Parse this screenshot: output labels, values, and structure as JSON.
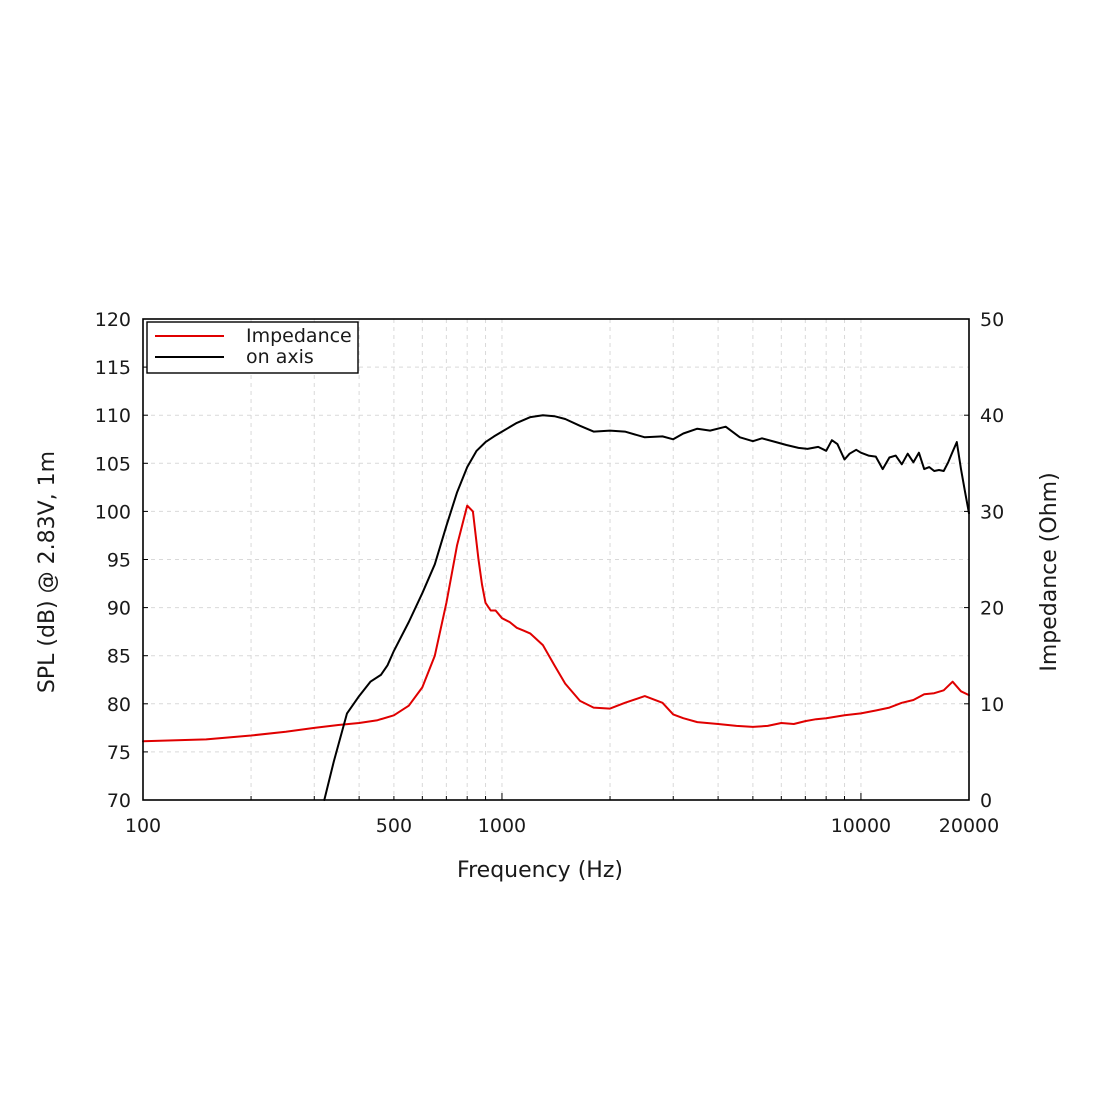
{
  "chart_data": {
    "type": "line",
    "title": "",
    "xlabel": "Frequency (Hz)",
    "ylabel_left": "SPL (dB) @ 2.83V, 1m",
    "ylabel_right": "Impedance (Ohm)",
    "x_scale": "log",
    "xlim": [
      100,
      20000
    ],
    "ylim_left": [
      70,
      120
    ],
    "ylim_right": [
      0,
      50
    ],
    "x_tick_labels": [
      "100",
      "500",
      "1000",
      "10000",
      "20000"
    ],
    "x_tick_values": [
      100,
      500,
      1000,
      10000,
      20000
    ],
    "y_left_ticks": [
      "70",
      "75",
      "80",
      "85",
      "90",
      "95",
      "100",
      "105",
      "110",
      "115",
      "120"
    ],
    "y_right_ticks": [
      "0",
      "10",
      "20",
      "30",
      "40",
      "50"
    ],
    "grid": true,
    "legend_position": "top-left",
    "series": [
      {
        "name": "Impedance",
        "axis": "right",
        "color": "#e00000",
        "x": [
          100,
          150,
          200,
          250,
          300,
          350,
          400,
          450,
          500,
          550,
          600,
          650,
          700,
          750,
          800,
          830,
          860,
          880,
          900,
          930,
          960,
          1000,
          1050,
          1100,
          1150,
          1200,
          1300,
          1400,
          1500,
          1650,
          1800,
          2000,
          2200,
          2500,
          2800,
          3000,
          3200,
          3500,
          4000,
          4500,
          5000,
          5500,
          6000,
          6500,
          7000,
          7500,
          8000,
          9000,
          10000,
          11000,
          12000,
          13000,
          14000,
          15000,
          16000,
          17000,
          18000,
          19000,
          20000
        ],
        "values": [
          6.1,
          6.3,
          6.7,
          7.1,
          7.5,
          7.8,
          8.0,
          8.3,
          8.8,
          9.8,
          11.7,
          15.0,
          20.5,
          26.5,
          30.6,
          30.0,
          25.0,
          22.4,
          20.5,
          19.7,
          19.7,
          18.9,
          18.5,
          17.9,
          17.6,
          17.3,
          16.1,
          14.0,
          12.1,
          10.3,
          9.6,
          9.5,
          10.1,
          10.8,
          10.1,
          8.9,
          8.5,
          8.1,
          7.9,
          7.7,
          7.6,
          7.7,
          8.0,
          7.9,
          8.2,
          8.4,
          8.5,
          8.8,
          9.0,
          9.3,
          9.6,
          10.1,
          10.4,
          11.0,
          11.1,
          11.4,
          12.3,
          11.3,
          10.9
        ]
      },
      {
        "name": "on axis",
        "axis": "left",
        "color": "#000000",
        "x": [
          320,
          340,
          370,
          400,
          430,
          460,
          480,
          500,
          550,
          600,
          650,
          700,
          750,
          800,
          850,
          900,
          950,
          1000,
          1100,
          1200,
          1300,
          1400,
          1500,
          1650,
          1800,
          2000,
          2200,
          2500,
          2800,
          3000,
          3200,
          3500,
          3800,
          4200,
          4600,
          5000,
          5300,
          5800,
          6200,
          6700,
          7100,
          7600,
          8000,
          8300,
          8600,
          9000,
          9300,
          9700,
          10000,
          10500,
          11000,
          11500,
          12000,
          12500,
          13000,
          13500,
          14000,
          14500,
          15000,
          15500,
          16000,
          16500,
          17000,
          17500,
          18000,
          18500,
          19000,
          19500,
          20000
        ],
        "values": [
          70.0,
          74.0,
          79.0,
          80.8,
          82.3,
          83.0,
          84.0,
          85.5,
          88.5,
          91.5,
          94.5,
          98.5,
          102.0,
          104.6,
          106.3,
          107.2,
          107.8,
          108.3,
          109.2,
          109.8,
          110.0,
          109.9,
          109.6,
          108.9,
          108.3,
          108.4,
          108.3,
          107.7,
          107.8,
          107.5,
          108.1,
          108.6,
          108.4,
          108.8,
          107.7,
          107.3,
          107.6,
          107.2,
          106.9,
          106.6,
          106.5,
          106.7,
          106.3,
          107.4,
          107.0,
          105.4,
          106.0,
          106.4,
          106.1,
          105.8,
          105.7,
          104.4,
          105.6,
          105.8,
          104.9,
          106.0,
          105.1,
          106.1,
          104.4,
          104.6,
          104.2,
          104.3,
          104.2,
          105.1,
          106.2,
          107.2,
          104.4,
          102.0,
          99.8
        ]
      }
    ]
  }
}
